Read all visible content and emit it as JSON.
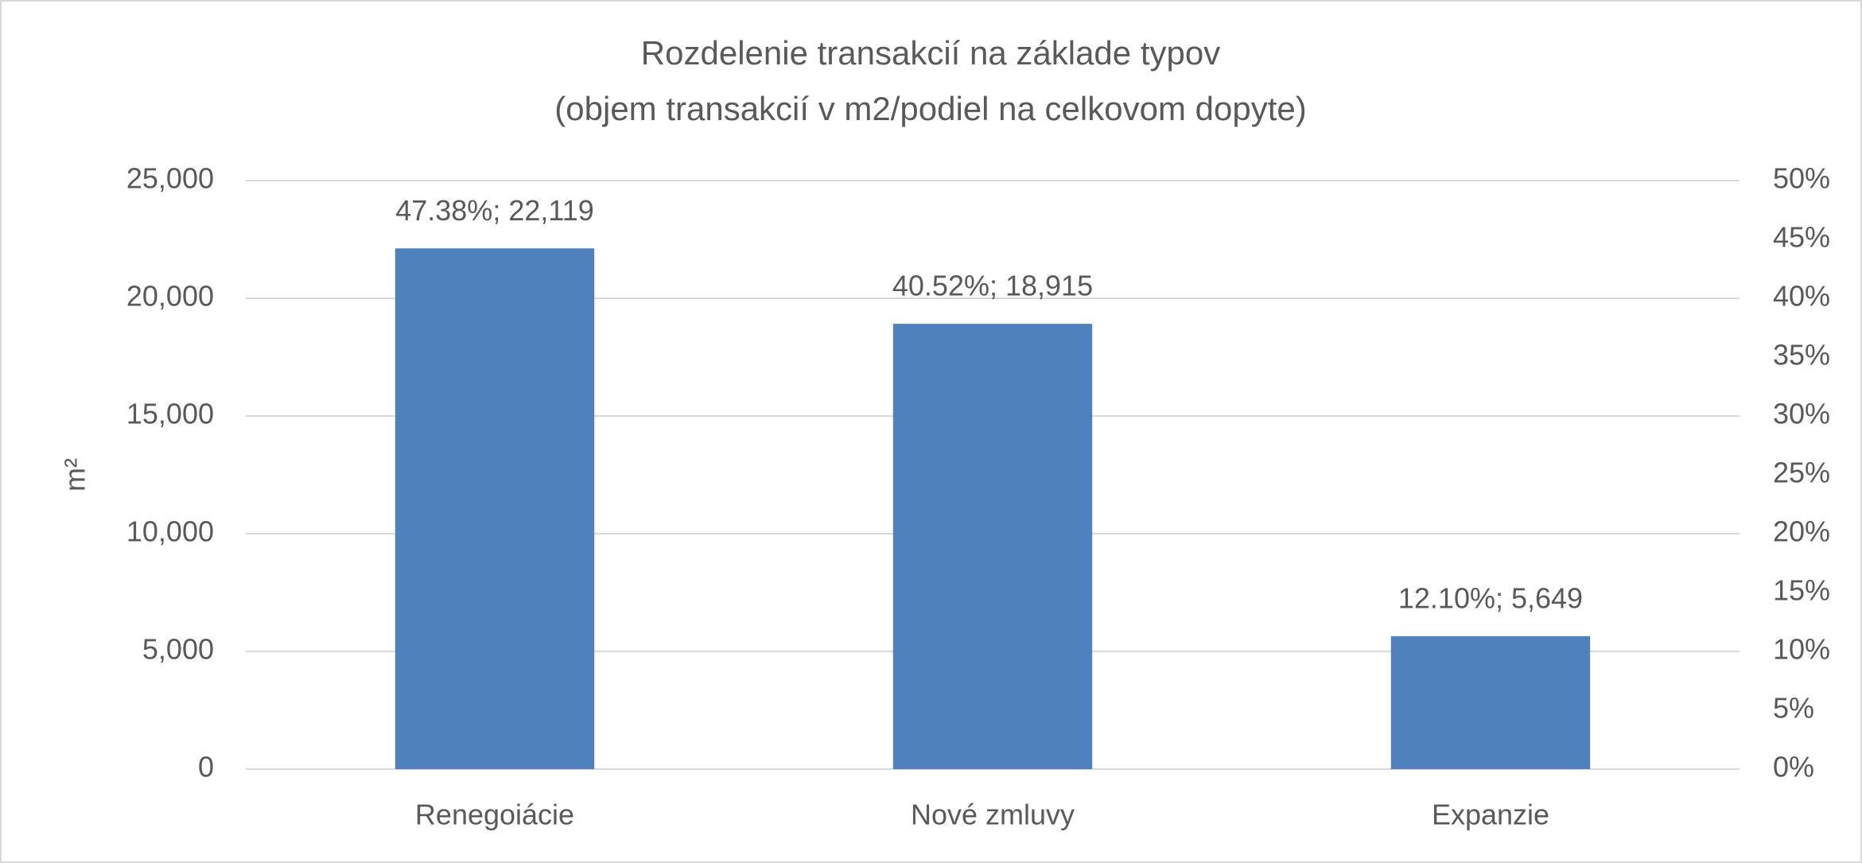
{
  "chart_data": {
    "type": "bar",
    "title": "Rozdelenie transakcií na základe typov",
    "subtitle": "(objem transakcií v m2/podiel na celkovom dopyte)",
    "y_label": "m²",
    "categories": [
      "Renegoiácie",
      "Nové zmluvy",
      "Expanzie"
    ],
    "values": [
      22119,
      18915,
      5649
    ],
    "value_labels": [
      "47.38%; 22,119",
      "40.52%; 18,915",
      "12.10%; 5,649"
    ],
    "color": "#4f81bd",
    "ylim": [
      0,
      25000
    ],
    "yticks": [
      0,
      {
        "value": 5000,
        "label": "5,000"
      },
      {
        "value": 10000,
        "label": "10,000"
      },
      {
        "value": 15000,
        "label": "15,000"
      },
      {
        "value": 20000,
        "label": "20,000"
      },
      {
        "value": 25000,
        "label": "25,000"
      }
    ],
    "y2lim": [
      0,
      50
    ],
    "y2ticks": [
      {
        "value": 0,
        "label": "0%"
      },
      {
        "value": 5,
        "label": "5%"
      },
      {
        "value": 10,
        "label": "10%"
      },
      {
        "value": 15,
        "label": "15%"
      },
      {
        "value": 20,
        "label": "20%"
      },
      {
        "value": 25,
        "label": "25%"
      },
      {
        "value": 30,
        "label": "30%"
      },
      {
        "value": 35,
        "label": "35%"
      },
      {
        "value": 40,
        "label": "40%"
      },
      {
        "value": 45,
        "label": "45%"
      },
      {
        "value": 50,
        "label": "50%"
      }
    ],
    "grid": true
  }
}
